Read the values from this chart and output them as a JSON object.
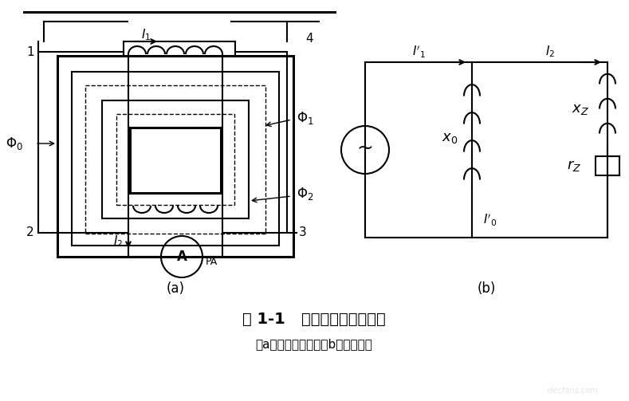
{
  "title": "图 1-1   电流互感器的原理图",
  "subtitle": "（a）电气原理图；（b）等效电路",
  "label_a": "(a)",
  "label_b": "(b)",
  "bg_color": "#ffffff",
  "line_color": "#000000",
  "text_color": "#000000"
}
